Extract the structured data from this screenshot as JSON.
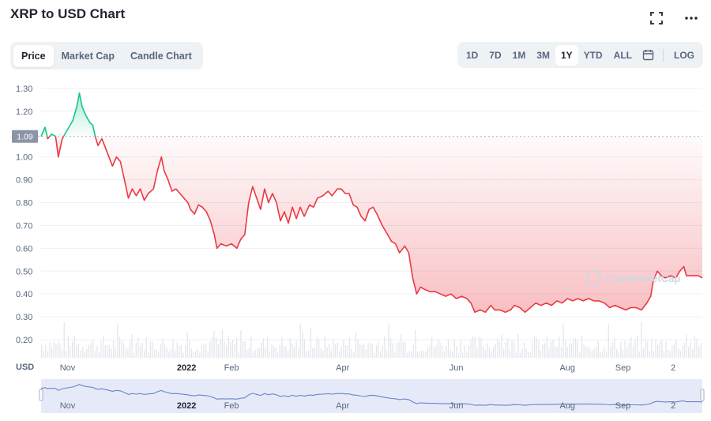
{
  "header": {
    "title": "XRP to USD Chart"
  },
  "icons": {
    "fullscreen": "fullscreen-icon",
    "more": "more-icon",
    "calendar": "calendar-icon"
  },
  "tabs": [
    {
      "label": "Price",
      "active": true
    },
    {
      "label": "Market Cap",
      "active": false
    },
    {
      "label": "Candle Chart",
      "active": false
    }
  ],
  "ranges": [
    {
      "label": "1D",
      "active": false
    },
    {
      "label": "7D",
      "active": false
    },
    {
      "label": "1M",
      "active": false
    },
    {
      "label": "3M",
      "active": false
    },
    {
      "label": "1Y",
      "active": true
    },
    {
      "label": "YTD",
      "active": false
    },
    {
      "label": "ALL",
      "active": false
    }
  ],
  "log_label": "LOG",
  "currency_label": "USD",
  "watermark": "CoinMarketCap",
  "colors": {
    "up": "#16c784",
    "down": "#ea3943",
    "navigator_line": "#6a84c9",
    "navigator_fill": "#e6eaf8"
  },
  "chart_data": {
    "type": "line",
    "title": "XRP to USD Chart",
    "ylabel": "USD",
    "ylim": [
      0.15,
      1.35
    ],
    "grid": true,
    "reference_price": 1.09,
    "reference_label": "1.09",
    "y_ticks": [
      0.2,
      0.3,
      0.4,
      0.5,
      0.6,
      0.7,
      0.8,
      0.9,
      1.0,
      1.09,
      1.2,
      1.3
    ],
    "x_ticks": [
      {
        "label": "Nov",
        "t": 2.0,
        "bold": false
      },
      {
        "label": "2022",
        "t": 11.0,
        "bold": true
      },
      {
        "label": "Feb",
        "t": 14.4,
        "bold": false
      },
      {
        "label": "Apr",
        "t": 22.8,
        "bold": false
      },
      {
        "label": "Jun",
        "t": 31.4,
        "bold": false
      },
      {
        "label": "Aug",
        "t": 39.8,
        "bold": false
      },
      {
        "label": "Sep",
        "t": 44.0,
        "bold": false
      },
      {
        "label": "2",
        "t": 47.8,
        "bold": false
      }
    ],
    "series": [
      {
        "points": [
          [
            0.0,
            1.09
          ],
          [
            0.3,
            1.13
          ],
          [
            0.5,
            1.08
          ],
          [
            0.8,
            1.1
          ],
          [
            1.1,
            1.09
          ],
          [
            1.3,
            1.0
          ],
          [
            1.6,
            1.08
          ],
          [
            2.0,
            1.12
          ],
          [
            2.4,
            1.16
          ],
          [
            2.7,
            1.22
          ],
          [
            2.9,
            1.28
          ],
          [
            3.1,
            1.22
          ],
          [
            3.4,
            1.18
          ],
          [
            3.7,
            1.15
          ],
          [
            3.9,
            1.14
          ],
          [
            4.1,
            1.09
          ],
          [
            4.3,
            1.05
          ],
          [
            4.6,
            1.08
          ],
          [
            5.0,
            1.02
          ],
          [
            5.4,
            0.96
          ],
          [
            5.7,
            1.0
          ],
          [
            6.0,
            0.98
          ],
          [
            6.3,
            0.9
          ],
          [
            6.6,
            0.82
          ],
          [
            6.9,
            0.86
          ],
          [
            7.2,
            0.83
          ],
          [
            7.5,
            0.86
          ],
          [
            7.8,
            0.81
          ],
          [
            8.1,
            0.84
          ],
          [
            8.5,
            0.86
          ],
          [
            8.8,
            0.94
          ],
          [
            9.1,
            1.0
          ],
          [
            9.3,
            0.94
          ],
          [
            9.6,
            0.9
          ],
          [
            9.9,
            0.85
          ],
          [
            10.2,
            0.86
          ],
          [
            10.5,
            0.84
          ],
          [
            10.8,
            0.82
          ],
          [
            11.1,
            0.8
          ],
          [
            11.3,
            0.77
          ],
          [
            11.6,
            0.75
          ],
          [
            11.9,
            0.79
          ],
          [
            12.2,
            0.78
          ],
          [
            12.5,
            0.76
          ],
          [
            12.8,
            0.72
          ],
          [
            13.1,
            0.66
          ],
          [
            13.3,
            0.6
          ],
          [
            13.6,
            0.62
          ],
          [
            14.0,
            0.61
          ],
          [
            14.4,
            0.62
          ],
          [
            14.8,
            0.6
          ],
          [
            15.1,
            0.64
          ],
          [
            15.4,
            0.66
          ],
          [
            15.7,
            0.8
          ],
          [
            16.0,
            0.87
          ],
          [
            16.3,
            0.82
          ],
          [
            16.6,
            0.77
          ],
          [
            16.9,
            0.86
          ],
          [
            17.2,
            0.8
          ],
          [
            17.5,
            0.84
          ],
          [
            17.8,
            0.8
          ],
          [
            18.1,
            0.72
          ],
          [
            18.4,
            0.76
          ],
          [
            18.7,
            0.71
          ],
          [
            19.0,
            0.78
          ],
          [
            19.3,
            0.73
          ],
          [
            19.6,
            0.78
          ],
          [
            19.9,
            0.74
          ],
          [
            20.3,
            0.79
          ],
          [
            20.6,
            0.78
          ],
          [
            20.9,
            0.82
          ],
          [
            21.3,
            0.83
          ],
          [
            21.7,
            0.85
          ],
          [
            22.0,
            0.83
          ],
          [
            22.4,
            0.86
          ],
          [
            22.7,
            0.86
          ],
          [
            23.0,
            0.84
          ],
          [
            23.3,
            0.84
          ],
          [
            23.6,
            0.79
          ],
          [
            23.9,
            0.78
          ],
          [
            24.2,
            0.74
          ],
          [
            24.5,
            0.72
          ],
          [
            24.8,
            0.77
          ],
          [
            25.1,
            0.78
          ],
          [
            25.4,
            0.75
          ],
          [
            25.8,
            0.7
          ],
          [
            26.2,
            0.66
          ],
          [
            26.5,
            0.63
          ],
          [
            26.8,
            0.62
          ],
          [
            27.1,
            0.58
          ],
          [
            27.5,
            0.61
          ],
          [
            27.8,
            0.58
          ],
          [
            28.1,
            0.47
          ],
          [
            28.4,
            0.4
          ],
          [
            28.7,
            0.43
          ],
          [
            29.0,
            0.42
          ],
          [
            29.4,
            0.41
          ],
          [
            29.8,
            0.41
          ],
          [
            30.2,
            0.4
          ],
          [
            30.6,
            0.39
          ],
          [
            31.0,
            0.4
          ],
          [
            31.4,
            0.38
          ],
          [
            31.8,
            0.39
          ],
          [
            32.2,
            0.38
          ],
          [
            32.5,
            0.36
          ],
          [
            32.8,
            0.32
          ],
          [
            33.2,
            0.33
          ],
          [
            33.6,
            0.32
          ],
          [
            34.0,
            0.35
          ],
          [
            34.3,
            0.33
          ],
          [
            34.7,
            0.33
          ],
          [
            35.1,
            0.32
          ],
          [
            35.5,
            0.33
          ],
          [
            35.8,
            0.35
          ],
          [
            36.2,
            0.34
          ],
          [
            36.6,
            0.32
          ],
          [
            37.0,
            0.34
          ],
          [
            37.4,
            0.36
          ],
          [
            37.8,
            0.35
          ],
          [
            38.2,
            0.36
          ],
          [
            38.6,
            0.35
          ],
          [
            39.0,
            0.37
          ],
          [
            39.4,
            0.36
          ],
          [
            39.8,
            0.38
          ],
          [
            40.2,
            0.37
          ],
          [
            40.6,
            0.38
          ],
          [
            41.0,
            0.37
          ],
          [
            41.4,
            0.38
          ],
          [
            41.8,
            0.37
          ],
          [
            42.2,
            0.37
          ],
          [
            42.6,
            0.36
          ],
          [
            43.0,
            0.34
          ],
          [
            43.4,
            0.35
          ],
          [
            43.8,
            0.34
          ],
          [
            44.2,
            0.33
          ],
          [
            44.6,
            0.34
          ],
          [
            45.0,
            0.34
          ],
          [
            45.4,
            0.33
          ],
          [
            45.8,
            0.36
          ],
          [
            46.1,
            0.39
          ],
          [
            46.3,
            0.46
          ],
          [
            46.6,
            0.5
          ],
          [
            46.9,
            0.48
          ],
          [
            47.2,
            0.47
          ],
          [
            47.6,
            0.48
          ],
          [
            48.0,
            0.47
          ],
          [
            48.3,
            0.5
          ],
          [
            48.6,
            0.52
          ],
          [
            48.8,
            0.48
          ],
          [
            49.1,
            0.48
          ],
          [
            49.4,
            0.48
          ],
          [
            49.7,
            0.48
          ],
          [
            50.0,
            0.47
          ]
        ]
      }
    ]
  }
}
